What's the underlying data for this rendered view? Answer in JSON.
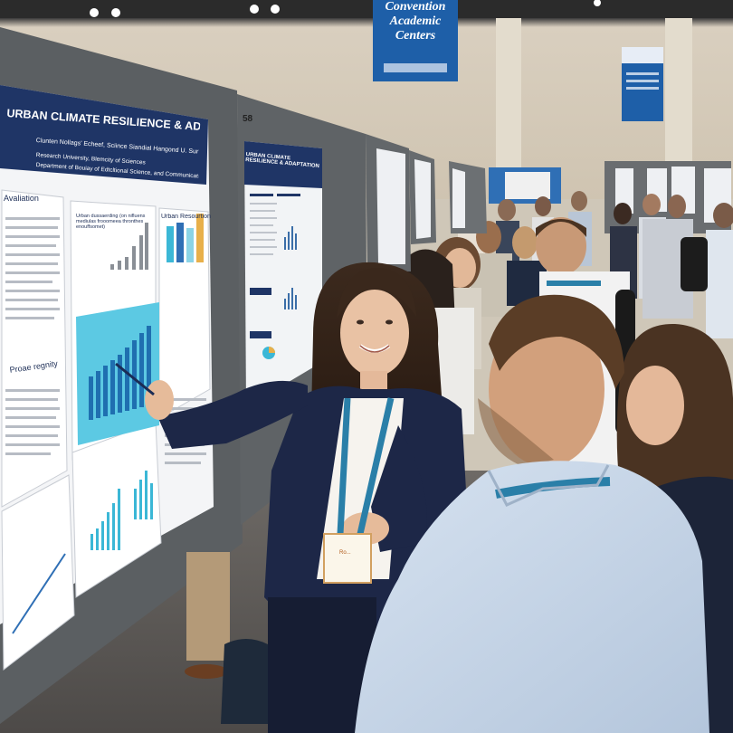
{
  "scene": {
    "description_free": true
  },
  "banner": {
    "line1": "Convention",
    "line2": "Academic",
    "line3": "Centers"
  },
  "board_number": "58",
  "poster_main": {
    "title": "URBAN CLIMATE RESILIENCE & ADAPTATION",
    "authors": "Clunten Nollags' Echeef, Sciince Siandial Hangond U. Sunge",
    "affiliation_1": "Research University, Blemcity of Sciences",
    "affiliation_2": "Department of Bouiay of Edtcltional Science, and Communications Gae",
    "section_1": "Avaliation",
    "section_2": "Urban Resourtion",
    "section_3": "Proae regnity",
    "chart_caption": "Urban dussaerding (on nifluens mediulas frooomeea thronthes enouffsomet)"
  },
  "poster_second": {
    "title": "URBAN CLIMATE RESILIENCE & ADAPTATION"
  },
  "badge": {
    "name": "Ro..."
  },
  "colors": {
    "poster_navy": "#1f3566",
    "chart_cyan": "#3bb7d6",
    "lanyard_blue": "#2a7fa8",
    "jacket_navy": "#1d2747",
    "shirt_light_blue": "#c9d8ea",
    "board_gray": "#5b5f62",
    "banner_blue": "#1e5fa8"
  }
}
